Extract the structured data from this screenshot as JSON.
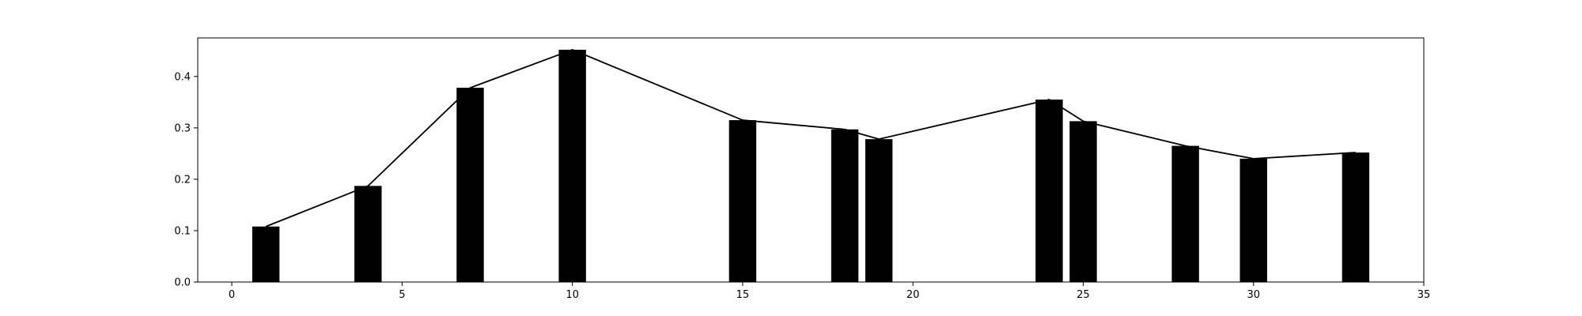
{
  "chart_data": {
    "type": "bar",
    "title": "",
    "xlabel": "",
    "ylabel": "",
    "xlim": [
      -1,
      35
    ],
    "ylim": [
      0,
      0.475
    ],
    "grid": false,
    "bar_width": 0.8,
    "bar_color": "#000000",
    "line_color": "#000000",
    "x": [
      1,
      4,
      7,
      10,
      15,
      18,
      19,
      24,
      25,
      28,
      30,
      33
    ],
    "values": [
      0.108,
      0.187,
      0.378,
      0.452,
      0.315,
      0.297,
      0.278,
      0.355,
      0.313,
      0.265,
      0.24,
      0.252
    ],
    "line": {
      "x": [
        1,
        4,
        7,
        10,
        15,
        18,
        19,
        24,
        25,
        28,
        30,
        33
      ],
      "y": [
        0.108,
        0.187,
        0.378,
        0.452,
        0.315,
        0.297,
        0.278,
        0.355,
        0.313,
        0.265,
        0.24,
        0.252
      ]
    },
    "xticks": [
      0,
      5,
      10,
      15,
      20,
      25,
      30,
      35
    ],
    "xtick_labels": [
      "0",
      "5",
      "10",
      "15",
      "20",
      "25",
      "30",
      "35"
    ],
    "yticks": [
      0.0,
      0.1,
      0.2,
      0.3,
      0.4
    ],
    "ytick_labels": [
      "0.0",
      "0.1",
      "0.2",
      "0.3",
      "0.4"
    ]
  }
}
